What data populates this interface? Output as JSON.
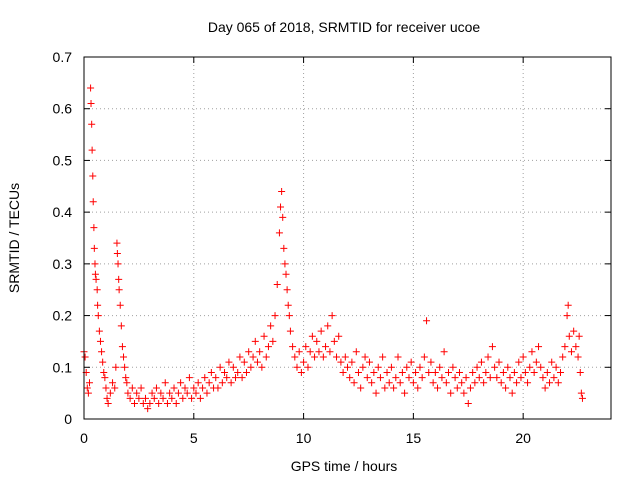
{
  "chart_data": {
    "type": "scatter",
    "title": "Day 065 of 2018, SRMTID for receiver ucoe",
    "xlabel": "GPS time / hours",
    "ylabel": "SRMTID / TECUs",
    "xlim": [
      0,
      24
    ],
    "ylim": [
      0,
      0.7
    ],
    "xticks": [
      0,
      5,
      10,
      15,
      20
    ],
    "yticks": [
      0,
      0.1,
      0.2,
      0.3,
      0.4,
      0.5,
      0.6,
      0.7
    ],
    "xtick_labels": [
      "0",
      "5",
      "10",
      "15",
      "20"
    ],
    "ytick_labels": [
      "0",
      "0.1",
      "0.2",
      "0.3",
      "0.4",
      "0.5",
      "0.6",
      "0.7"
    ],
    "grid": true,
    "marker": "plus",
    "color": "#ff0000",
    "series": [
      {
        "name": "SRMTID",
        "points": [
          [
            0.0,
            0.13
          ],
          [
            0.05,
            0.12
          ],
          [
            0.1,
            0.09
          ],
          [
            0.15,
            0.06
          ],
          [
            0.2,
            0.05
          ],
          [
            0.25,
            0.07
          ],
          [
            0.3,
            0.64
          ],
          [
            0.32,
            0.61
          ],
          [
            0.35,
            0.57
          ],
          [
            0.37,
            0.52
          ],
          [
            0.4,
            0.47
          ],
          [
            0.42,
            0.42
          ],
          [
            0.45,
            0.37
          ],
          [
            0.47,
            0.33
          ],
          [
            0.5,
            0.3
          ],
          [
            0.52,
            0.28
          ],
          [
            0.55,
            0.27
          ],
          [
            0.6,
            0.25
          ],
          [
            0.62,
            0.22
          ],
          [
            0.65,
            0.2
          ],
          [
            0.7,
            0.17
          ],
          [
            0.75,
            0.15
          ],
          [
            0.8,
            0.13
          ],
          [
            0.85,
            0.11
          ],
          [
            0.9,
            0.09
          ],
          [
            0.95,
            0.08
          ],
          [
            1.0,
            0.06
          ],
          [
            1.05,
            0.04
          ],
          [
            1.1,
            0.03
          ],
          [
            1.2,
            0.05
          ],
          [
            1.3,
            0.07
          ],
          [
            1.4,
            0.06
          ],
          [
            1.45,
            0.1
          ],
          [
            1.5,
            0.34
          ],
          [
            1.52,
            0.32
          ],
          [
            1.55,
            0.3
          ],
          [
            1.58,
            0.27
          ],
          [
            1.6,
            0.25
          ],
          [
            1.65,
            0.22
          ],
          [
            1.7,
            0.18
          ],
          [
            1.75,
            0.14
          ],
          [
            1.8,
            0.12
          ],
          [
            1.85,
            0.1
          ],
          [
            1.9,
            0.08
          ],
          [
            1.95,
            0.07
          ],
          [
            2.0,
            0.05
          ],
          [
            2.1,
            0.04
          ],
          [
            2.2,
            0.06
          ],
          [
            2.3,
            0.03
          ],
          [
            2.4,
            0.05
          ],
          [
            2.5,
            0.04
          ],
          [
            2.6,
            0.06
          ],
          [
            2.7,
            0.03
          ],
          [
            2.8,
            0.04
          ],
          [
            2.9,
            0.02
          ],
          [
            3.0,
            0.03
          ],
          [
            3.1,
            0.05
          ],
          [
            3.2,
            0.04
          ],
          [
            3.3,
            0.06
          ],
          [
            3.4,
            0.03
          ],
          [
            3.5,
            0.05
          ],
          [
            3.6,
            0.04
          ],
          [
            3.7,
            0.07
          ],
          [
            3.8,
            0.03
          ],
          [
            3.9,
            0.05
          ],
          [
            4.0,
            0.04
          ],
          [
            4.1,
            0.06
          ],
          [
            4.2,
            0.03
          ],
          [
            4.3,
            0.05
          ],
          [
            4.4,
            0.07
          ],
          [
            4.5,
            0.04
          ],
          [
            4.6,
            0.06
          ],
          [
            4.7,
            0.05
          ],
          [
            4.8,
            0.08
          ],
          [
            4.9,
            0.04
          ],
          [
            5.0,
            0.06
          ],
          [
            5.1,
            0.05
          ],
          [
            5.2,
            0.07
          ],
          [
            5.3,
            0.04
          ],
          [
            5.4,
            0.06
          ],
          [
            5.5,
            0.08
          ],
          [
            5.6,
            0.05
          ],
          [
            5.7,
            0.07
          ],
          [
            5.8,
            0.09
          ],
          [
            5.9,
            0.06
          ],
          [
            6.0,
            0.08
          ],
          [
            6.1,
            0.06
          ],
          [
            6.2,
            0.1
          ],
          [
            6.3,
            0.07
          ],
          [
            6.4,
            0.09
          ],
          [
            6.5,
            0.08
          ],
          [
            6.6,
            0.11
          ],
          [
            6.7,
            0.07
          ],
          [
            6.8,
            0.1
          ],
          [
            6.9,
            0.08
          ],
          [
            7.0,
            0.09
          ],
          [
            7.1,
            0.12
          ],
          [
            7.2,
            0.08
          ],
          [
            7.3,
            0.11
          ],
          [
            7.4,
            0.09
          ],
          [
            7.5,
            0.13
          ],
          [
            7.6,
            0.1
          ],
          [
            7.7,
            0.12
          ],
          [
            7.8,
            0.15
          ],
          [
            7.9,
            0.11
          ],
          [
            8.0,
            0.13
          ],
          [
            8.1,
            0.1
          ],
          [
            8.2,
            0.16
          ],
          [
            8.3,
            0.12
          ],
          [
            8.4,
            0.14
          ],
          [
            8.5,
            0.18
          ],
          [
            8.6,
            0.15
          ],
          [
            8.7,
            0.2
          ],
          [
            8.8,
            0.26
          ],
          [
            8.9,
            0.36
          ],
          [
            8.95,
            0.41
          ],
          [
            9.0,
            0.44
          ],
          [
            9.05,
            0.39
          ],
          [
            9.1,
            0.33
          ],
          [
            9.15,
            0.3
          ],
          [
            9.2,
            0.28
          ],
          [
            9.25,
            0.25
          ],
          [
            9.3,
            0.22
          ],
          [
            9.35,
            0.2
          ],
          [
            9.4,
            0.17
          ],
          [
            9.5,
            0.14
          ],
          [
            9.6,
            0.12
          ],
          [
            9.7,
            0.1
          ],
          [
            9.8,
            0.13
          ],
          [
            9.9,
            0.09
          ],
          [
            10.0,
            0.11
          ],
          [
            10.1,
            0.14
          ],
          [
            10.2,
            0.1
          ],
          [
            10.3,
            0.13
          ],
          [
            10.4,
            0.16
          ],
          [
            10.5,
            0.12
          ],
          [
            10.6,
            0.15
          ],
          [
            10.7,
            0.13
          ],
          [
            10.8,
            0.17
          ],
          [
            10.9,
            0.12
          ],
          [
            11.0,
            0.14
          ],
          [
            11.1,
            0.18
          ],
          [
            11.2,
            0.13
          ],
          [
            11.3,
            0.2
          ],
          [
            11.4,
            0.15
          ],
          [
            11.5,
            0.12
          ],
          [
            11.6,
            0.16
          ],
          [
            11.7,
            0.11
          ],
          [
            11.8,
            0.09
          ],
          [
            11.9,
            0.12
          ],
          [
            12.0,
            0.1
          ],
          [
            12.1,
            0.08
          ],
          [
            12.2,
            0.11
          ],
          [
            12.3,
            0.07
          ],
          [
            12.4,
            0.13
          ],
          [
            12.5,
            0.09
          ],
          [
            12.6,
            0.06
          ],
          [
            12.7,
            0.1
          ],
          [
            12.8,
            0.12
          ],
          [
            12.9,
            0.08
          ],
          [
            13.0,
            0.11
          ],
          [
            13.1,
            0.07
          ],
          [
            13.2,
            0.09
          ],
          [
            13.3,
            0.05
          ],
          [
            13.4,
            0.1
          ],
          [
            13.5,
            0.08
          ],
          [
            13.6,
            0.12
          ],
          [
            13.7,
            0.06
          ],
          [
            13.8,
            0.09
          ],
          [
            13.9,
            0.07
          ],
          [
            14.0,
            0.1
          ],
          [
            14.1,
            0.06
          ],
          [
            14.2,
            0.08
          ],
          [
            14.3,
            0.12
          ],
          [
            14.4,
            0.07
          ],
          [
            14.5,
            0.09
          ],
          [
            14.6,
            0.05
          ],
          [
            14.7,
            0.1
          ],
          [
            14.8,
            0.08
          ],
          [
            14.9,
            0.11
          ],
          [
            15.0,
            0.07
          ],
          [
            15.1,
            0.09
          ],
          [
            15.2,
            0.06
          ],
          [
            15.3,
            0.1
          ],
          [
            15.4,
            0.08
          ],
          [
            15.5,
            0.12
          ],
          [
            15.6,
            0.19
          ],
          [
            15.7,
            0.09
          ],
          [
            15.8,
            0.11
          ],
          [
            15.9,
            0.07
          ],
          [
            16.0,
            0.09
          ],
          [
            16.1,
            0.06
          ],
          [
            16.2,
            0.1
          ],
          [
            16.3,
            0.08
          ],
          [
            16.4,
            0.13
          ],
          [
            16.5,
            0.07
          ],
          [
            16.6,
            0.09
          ],
          [
            16.7,
            0.05
          ],
          [
            16.8,
            0.1
          ],
          [
            16.9,
            0.08
          ],
          [
            17.0,
            0.06
          ],
          [
            17.1,
            0.09
          ],
          [
            17.2,
            0.07
          ],
          [
            17.3,
            0.05
          ],
          [
            17.4,
            0.08
          ],
          [
            17.5,
            0.03
          ],
          [
            17.6,
            0.06
          ],
          [
            17.7,
            0.09
          ],
          [
            17.8,
            0.07
          ],
          [
            17.9,
            0.1
          ],
          [
            18.0,
            0.08
          ],
          [
            18.1,
            0.11
          ],
          [
            18.2,
            0.07
          ],
          [
            18.3,
            0.09
          ],
          [
            18.4,
            0.12
          ],
          [
            18.5,
            0.08
          ],
          [
            18.6,
            0.14
          ],
          [
            18.7,
            0.1
          ],
          [
            18.8,
            0.08
          ],
          [
            18.9,
            0.11
          ],
          [
            19.0,
            0.07
          ],
          [
            19.1,
            0.09
          ],
          [
            19.2,
            0.06
          ],
          [
            19.3,
            0.1
          ],
          [
            19.4,
            0.08
          ],
          [
            19.5,
            0.05
          ],
          [
            19.6,
            0.09
          ],
          [
            19.7,
            0.07
          ],
          [
            19.8,
            0.11
          ],
          [
            19.9,
            0.08
          ],
          [
            20.0,
            0.12
          ],
          [
            20.1,
            0.09
          ],
          [
            20.2,
            0.07
          ],
          [
            20.3,
            0.1
          ],
          [
            20.4,
            0.13
          ],
          [
            20.5,
            0.09
          ],
          [
            20.6,
            0.11
          ],
          [
            20.7,
            0.14
          ],
          [
            20.8,
            0.1
          ],
          [
            20.9,
            0.08
          ],
          [
            21.0,
            0.06
          ],
          [
            21.1,
            0.09
          ],
          [
            21.2,
            0.07
          ],
          [
            21.3,
            0.11
          ],
          [
            21.4,
            0.08
          ],
          [
            21.5,
            0.1
          ],
          [
            21.6,
            0.07
          ],
          [
            21.7,
            0.09
          ],
          [
            21.8,
            0.12
          ],
          [
            21.9,
            0.14
          ],
          [
            22.0,
            0.2
          ],
          [
            22.05,
            0.22
          ],
          [
            22.1,
            0.16
          ],
          [
            22.2,
            0.13
          ],
          [
            22.3,
            0.17
          ],
          [
            22.4,
            0.14
          ],
          [
            22.5,
            0.12
          ],
          [
            22.55,
            0.16
          ],
          [
            22.6,
            0.09
          ],
          [
            22.65,
            0.05
          ],
          [
            22.7,
            0.04
          ]
        ]
      }
    ]
  }
}
